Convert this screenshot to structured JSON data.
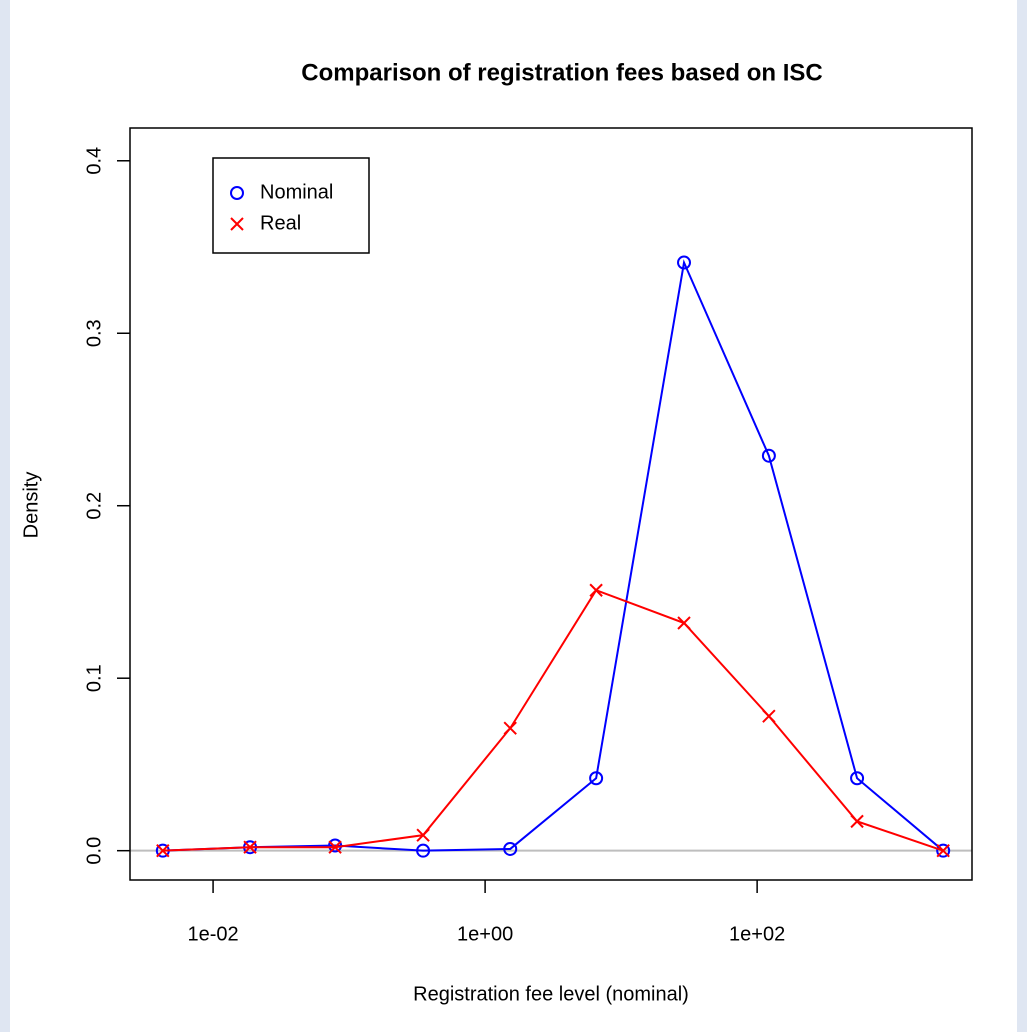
{
  "chart_data": {
    "type": "line",
    "title": "Comparison of registration fees based on ISC",
    "xlabel": "Registration fee level (nominal)",
    "ylabel": "Density",
    "x": [
      0.00427,
      0.0187,
      0.0789,
      0.35,
      1.53,
      6.55,
      29,
      122,
      543,
      2333
    ],
    "series": [
      {
        "name": "Nominal",
        "color": "#0000ff",
        "marker": "circle",
        "values": [
          0,
          0.002,
          0.003,
          0,
          0.001,
          0.042,
          0.341,
          0.229,
          0.042,
          0
        ]
      },
      {
        "name": "Real",
        "color": "#ff0000",
        "marker": "x",
        "values": [
          0,
          0.002,
          0.002,
          0.009,
          0.071,
          0.151,
          0.132,
          0.078,
          0.017,
          0
        ]
      }
    ],
    "xscale": "log",
    "xlim": [
      0.00245,
      3800
    ],
    "ylim": [
      -0.017,
      0.419
    ],
    "xticks": [
      {
        "value": 0.01,
        "label": "1e-02"
      },
      {
        "value": 1,
        "label": "1e+00"
      },
      {
        "value": 100,
        "label": "1e+02"
      }
    ],
    "yticks": [
      {
        "value": 0,
        "label": "0.0"
      },
      0.1,
      0.2,
      0.3,
      0.4
    ],
    "hline": 0,
    "legend": "top-left"
  }
}
